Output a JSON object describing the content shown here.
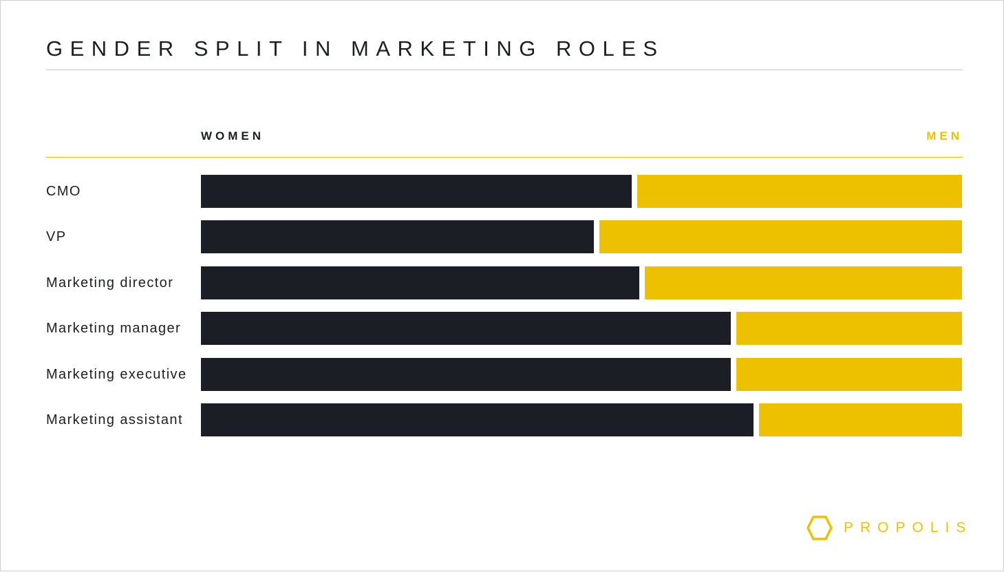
{
  "chart_data": {
    "type": "bar",
    "orientation": "horizontal",
    "stacked": true,
    "title": "GENDER SPLIT IN MARKETING ROLES",
    "categories": [
      "CMO",
      "VP",
      "Marketing director",
      "Marketing manager",
      "Marketing executive",
      "Marketing assistant"
    ],
    "series": [
      {
        "name": "WOMEN",
        "color": "#1b1e24",
        "values": [
          57,
          52,
          58,
          70,
          70,
          73
        ]
      },
      {
        "name": "MEN",
        "color": "#edc100",
        "values": [
          43,
          48,
          42,
          30,
          30,
          27
        ]
      }
    ],
    "xlim": [
      0,
      100
    ],
    "grid": false
  },
  "brand": {
    "name": "PROPOLIS",
    "icon": "hexagon-icon",
    "color": "#edc100"
  }
}
